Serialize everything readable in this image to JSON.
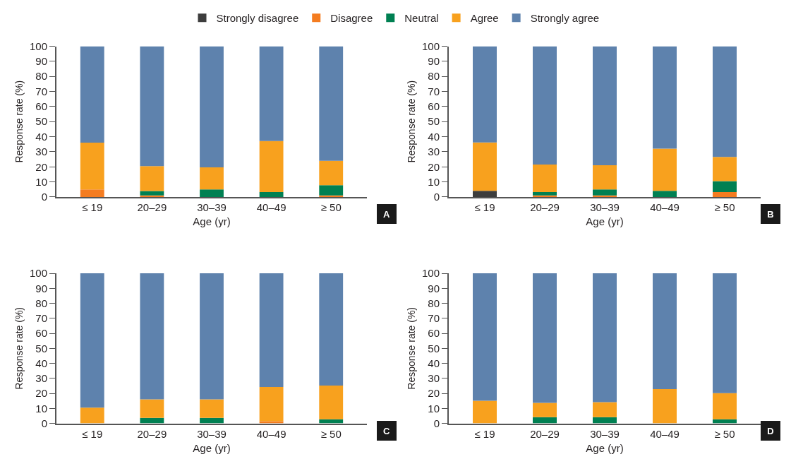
{
  "chart_data": [
    {
      "type": "bar",
      "stacked": true,
      "xlabel": "Age (yr)",
      "ylabel": "Response rate (%)",
      "categories": [
        "≤ 19",
        "20–29",
        "30–39",
        "40–49",
        "≥ 50"
      ],
      "ylim": [
        0,
        100
      ],
      "yticks": [
        0,
        10,
        20,
        30,
        40,
        50,
        60,
        70,
        80,
        90,
        100
      ],
      "legend": "top",
      "annotations": [
        "A"
      ],
      "series": [
        {
          "name": "Strongly disagree",
          "color": "#3d3d3d",
          "values": [
            0,
            0,
            0,
            0,
            0
          ]
        },
        {
          "name": "Disagree",
          "color": "#f47c20",
          "values": [
            5,
            1,
            0,
            0,
            1
          ]
        },
        {
          "name": "Neutral",
          "color": "#008052",
          "values": [
            0,
            3,
            5,
            3.2,
            6.8
          ]
        },
        {
          "name": "Agree",
          "color": "#f8a11e",
          "values": [
            31,
            16.5,
            14.7,
            33.9,
            16.2
          ]
        },
        {
          "name": "Strongly agree",
          "color": "#5e82ad",
          "values": [
            64,
            79.5,
            80.3,
            62.9,
            76
          ]
        }
      ]
    },
    {
      "type": "bar",
      "stacked": true,
      "xlabel": "Age (yr)",
      "ylabel": "Response rate (%)",
      "categories": [
        "≤ 19",
        "20–29",
        "30–39",
        "40–49",
        "≥ 50"
      ],
      "ylim": [
        0,
        100
      ],
      "yticks": [
        0,
        10,
        20,
        30,
        40,
        50,
        60,
        70,
        80,
        90,
        100
      ],
      "annotations": [
        "B"
      ],
      "series": [
        {
          "color": "#3d3d3d",
          "values": [
            4.1,
            0,
            0,
            0,
            0
          ]
        },
        {
          "color": "#f47c20",
          "values": [
            0,
            1,
            1,
            0,
            3.2
          ]
        },
        {
          "color": "#008052",
          "values": [
            0,
            2.2,
            4,
            4.1,
            7.3
          ]
        },
        {
          "color": "#f8a11e",
          "values": [
            32.1,
            18.3,
            16.1,
            28,
            16.1
          ]
        },
        {
          "color": "#5e82ad",
          "values": [
            63.8,
            78.5,
            78.9,
            67.9,
            73.4
          ]
        }
      ]
    },
    {
      "type": "bar",
      "stacked": true,
      "xlabel": "Age (yr)",
      "ylabel": "Response rate (%)",
      "categories": [
        "≤ 19",
        "20–29",
        "30–39",
        "40–49",
        "≥ 50"
      ],
      "ylim": [
        0,
        100
      ],
      "yticks": [
        0,
        10,
        20,
        30,
        40,
        50,
        60,
        70,
        80,
        90,
        100
      ],
      "annotations": [
        "C"
      ],
      "series": [
        {
          "color": "#3d3d3d",
          "values": [
            0,
            0,
            0,
            0,
            0
          ]
        },
        {
          "color": "#f47c20",
          "values": [
            0,
            0,
            0,
            1.4,
            0
          ]
        },
        {
          "color": "#008052",
          "values": [
            0,
            3.7,
            3.7,
            0,
            2.7
          ]
        },
        {
          "color": "#f8a11e",
          "values": [
            10.5,
            12.3,
            12.3,
            22.9,
            22.5
          ]
        },
        {
          "color": "#5e82ad",
          "values": [
            89.5,
            84,
            84,
            75.7,
            74.8
          ]
        }
      ]
    },
    {
      "type": "bar",
      "stacked": true,
      "xlabel": "Age (yr)",
      "ylabel": "Response rate (%)",
      "categories": [
        "≤ 19",
        "20–29",
        "30–39",
        "40–49",
        "≥ 50"
      ],
      "ylim": [
        0,
        100
      ],
      "yticks": [
        0,
        10,
        20,
        30,
        40,
        50,
        60,
        70,
        80,
        90,
        100
      ],
      "annotations": [
        "D"
      ],
      "series": [
        {
          "color": "#3d3d3d",
          "values": [
            0,
            0,
            0,
            0,
            0
          ]
        },
        {
          "color": "#f47c20",
          "values": [
            0,
            0,
            0,
            0,
            0
          ]
        },
        {
          "color": "#008052",
          "values": [
            0,
            4.1,
            4.1,
            0,
            2.7
          ]
        },
        {
          "color": "#f8a11e",
          "values": [
            15.1,
            9.6,
            10.1,
            22.9,
            17.5
          ]
        },
        {
          "color": "#5e82ad",
          "values": [
            84.9,
            86.3,
            85.8,
            77.1,
            79.8
          ]
        }
      ]
    }
  ]
}
